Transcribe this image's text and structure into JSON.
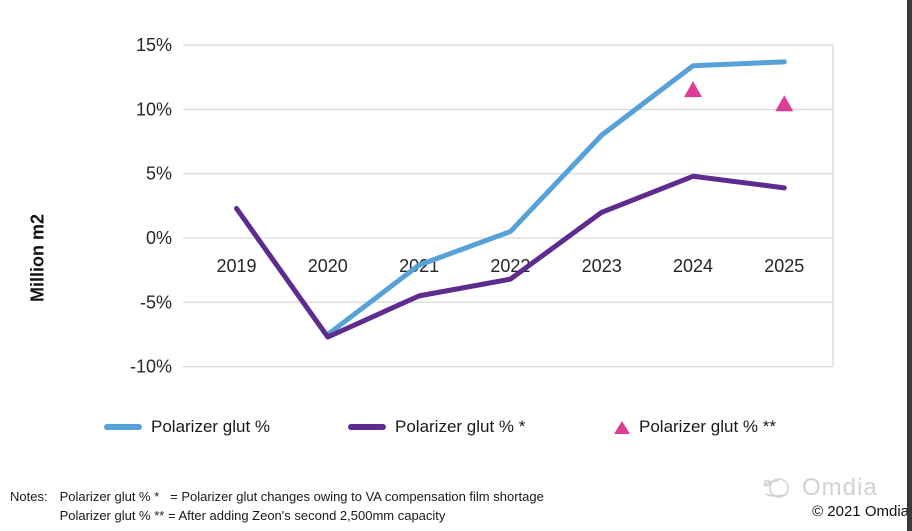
{
  "chart_data": {
    "type": "line",
    "title": "",
    "xlabel": "",
    "ylabel": "Million m2",
    "categories": [
      "2019",
      "2020",
      "2021",
      "2022",
      "2023",
      "2024",
      "2025"
    ],
    "yticks": [
      15,
      10,
      5,
      0,
      -5,
      -10
    ],
    "ytick_labels": [
      "15%",
      "10%",
      "5%",
      "0%",
      "-5%",
      "-10%"
    ],
    "ylim": [
      -12.5,
      16.5
    ],
    "grid": true,
    "legend_position": "bottom",
    "series": [
      {
        "name": "Polarizer glut %",
        "type": "line",
        "color": "#56A2D8",
        "values": [
          null,
          -7.5,
          -2.1,
          0.5,
          8.0,
          13.4,
          13.7
        ]
      },
      {
        "name": "Polarizer glut % *",
        "type": "line",
        "color": "#5E2C8E",
        "values": [
          2.3,
          -7.7,
          -4.5,
          -3.2,
          2.0,
          4.8,
          3.9
        ]
      },
      {
        "name": "Polarizer glut % **",
        "type": "scatter",
        "marker": "triangle",
        "color": "#DC3D96",
        "values": [
          null,
          null,
          null,
          null,
          null,
          11.5,
          10.4
        ]
      }
    ]
  },
  "colors": {
    "blue": "#56A2D8",
    "purple": "#5E2C8E",
    "pink": "#DC3D96",
    "grid": "#D9D9D9",
    "text": "#262626"
  },
  "legend": {
    "items": [
      {
        "label": "Polarizer glut %",
        "swatch": "line",
        "color": "#56A2D8"
      },
      {
        "label": "Polarizer glut % *",
        "swatch": "line",
        "color": "#5E2C8E"
      },
      {
        "label": "Polarizer glut % **",
        "swatch": "triangle",
        "color": "#DC3D96"
      }
    ]
  },
  "notes": {
    "label": "Notes:",
    "line1": "Polarizer glut % *   = Polarizer glut changes owing to VA compensation film shortage",
    "line2": "Polarizer glut % ** = After adding Zeon's second 2,500mm capacity"
  },
  "footer": {
    "brand": "Omdia",
    "copyright": "© 2021 Omdia"
  }
}
